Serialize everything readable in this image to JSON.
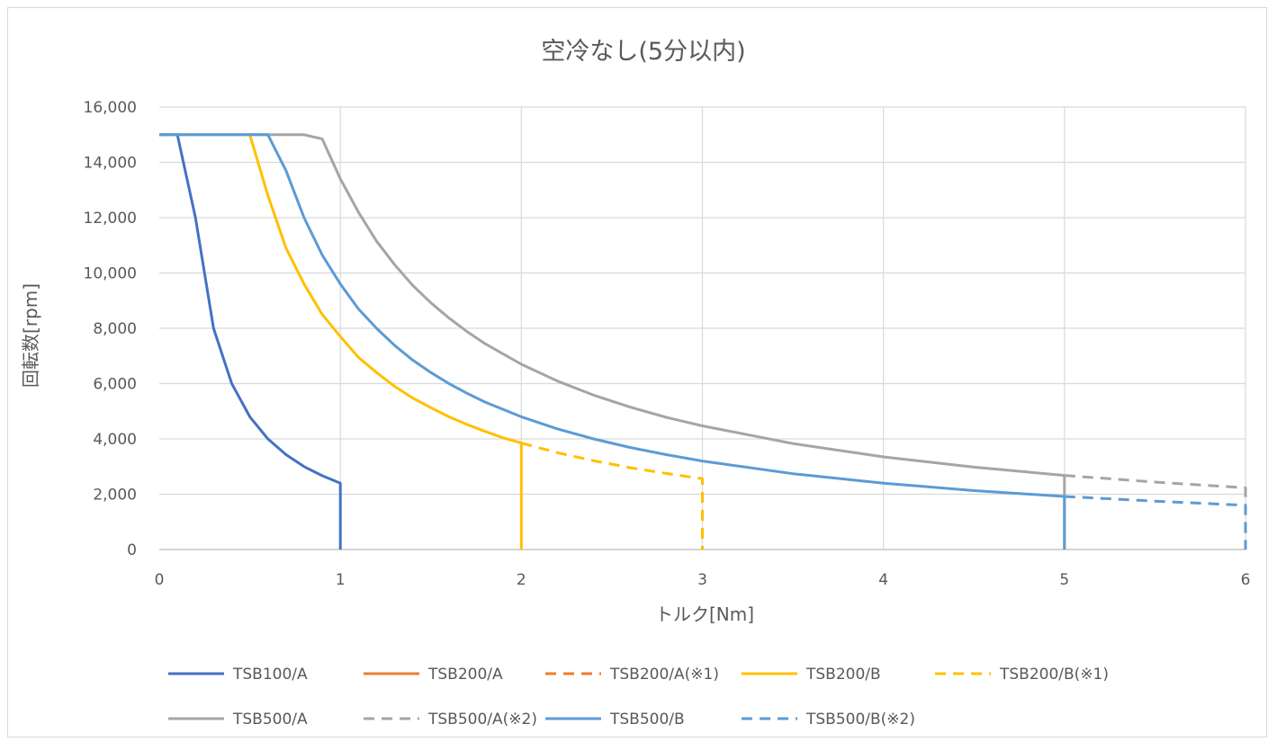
{
  "chart_data": {
    "type": "line",
    "title": "空冷なし(5分以内)",
    "xlabel": "トルク[Nm]",
    "ylabel": "回転数[rpm]",
    "xlim": [
      0,
      6
    ],
    "ylim": [
      0,
      16000
    ],
    "x_ticks": [
      0,
      1,
      2,
      3,
      4,
      5,
      6
    ],
    "x_tick_labels": [
      "0",
      "1",
      "2",
      "3",
      "4",
      "5",
      "6"
    ],
    "y_ticks": [
      0,
      2000,
      4000,
      6000,
      8000,
      10000,
      12000,
      14000,
      16000
    ],
    "y_tick_labels": [
      "0",
      "2,000",
      "4,000",
      "6,000",
      "8,000",
      "10,000",
      "12,000",
      "14,000",
      "16,000"
    ],
    "grid": true,
    "legend_position": "bottom",
    "series": [
      {
        "name": "TSB100/A",
        "color": "#4472c4",
        "dash": false,
        "points": [
          [
            0,
            15000
          ],
          [
            0.1,
            15000
          ],
          [
            0.2,
            12000
          ],
          [
            0.3,
            8000
          ],
          [
            0.4,
            6000
          ],
          [
            0.5,
            4800
          ],
          [
            0.6,
            4000
          ],
          [
            0.7,
            3430
          ],
          [
            0.8,
            3000
          ],
          [
            0.9,
            2670
          ],
          [
            1.0,
            2400
          ],
          [
            1.0,
            0
          ]
        ]
      },
      {
        "name": "TSB200/A",
        "color": "#ed7d31",
        "dash": false,
        "points": []
      },
      {
        "name": "TSB200/A(※1)",
        "color": "#ed7d31",
        "dash": true,
        "points": []
      },
      {
        "name": "TSB200/B",
        "color": "#ffc000",
        "dash": false,
        "points": [
          [
            0.5,
            15000
          ],
          [
            0.6,
            12800
          ],
          [
            0.7,
            10900
          ],
          [
            0.8,
            9600
          ],
          [
            0.9,
            8500
          ],
          [
            1.0,
            7700
          ],
          [
            1.1,
            6950
          ],
          [
            1.2,
            6400
          ],
          [
            1.3,
            5900
          ],
          [
            1.4,
            5480
          ],
          [
            1.5,
            5130
          ],
          [
            1.6,
            4800
          ],
          [
            1.7,
            4520
          ],
          [
            1.8,
            4270
          ],
          [
            1.9,
            4040
          ],
          [
            2.0,
            3850
          ],
          [
            2.0,
            0
          ]
        ]
      },
      {
        "name": "TSB200/B(※1)",
        "color": "#ffc000",
        "dash": true,
        "points": [
          [
            2.0,
            3850
          ],
          [
            2.2,
            3500
          ],
          [
            2.4,
            3210
          ],
          [
            2.6,
            2960
          ],
          [
            2.8,
            2750
          ],
          [
            3.0,
            2560
          ],
          [
            3.0,
            0
          ]
        ]
      },
      {
        "name": "TSB500/A",
        "color": "#a5a5a5",
        "dash": false,
        "points": [
          [
            0,
            15000
          ],
          [
            0.8,
            15000
          ],
          [
            0.9,
            14850
          ],
          [
            1.0,
            13400
          ],
          [
            1.1,
            12200
          ],
          [
            1.2,
            11150
          ],
          [
            1.3,
            10300
          ],
          [
            1.4,
            9550
          ],
          [
            1.5,
            8920
          ],
          [
            1.6,
            8370
          ],
          [
            1.7,
            7880
          ],
          [
            1.8,
            7440
          ],
          [
            2.0,
            6700
          ],
          [
            2.2,
            6090
          ],
          [
            2.4,
            5580
          ],
          [
            2.6,
            5150
          ],
          [
            2.8,
            4780
          ],
          [
            3.0,
            4470
          ],
          [
            3.5,
            3830
          ],
          [
            4.0,
            3350
          ],
          [
            4.5,
            2980
          ],
          [
            5.0,
            2680
          ],
          [
            5.0,
            0
          ]
        ]
      },
      {
        "name": "TSB500/A(※2)",
        "color": "#a5a5a5",
        "dash": true,
        "points": [
          [
            5.0,
            2680
          ],
          [
            5.5,
            2440
          ],
          [
            6.0,
            2230
          ],
          [
            6.0,
            0
          ]
        ]
      },
      {
        "name": "TSB500/B",
        "color": "#5b9bd5",
        "dash": false,
        "points": [
          [
            0,
            15000
          ],
          [
            0.6,
            15000
          ],
          [
            0.7,
            13700
          ],
          [
            0.8,
            12000
          ],
          [
            0.9,
            10650
          ],
          [
            1.0,
            9600
          ],
          [
            1.1,
            8700
          ],
          [
            1.2,
            8000
          ],
          [
            1.3,
            7380
          ],
          [
            1.4,
            6850
          ],
          [
            1.5,
            6400
          ],
          [
            1.6,
            6000
          ],
          [
            1.7,
            5650
          ],
          [
            1.8,
            5330
          ],
          [
            2.0,
            4800
          ],
          [
            2.2,
            4360
          ],
          [
            2.4,
            4000
          ],
          [
            2.6,
            3690
          ],
          [
            2.8,
            3430
          ],
          [
            3.0,
            3200
          ],
          [
            3.5,
            2740
          ],
          [
            4.0,
            2400
          ],
          [
            4.5,
            2130
          ],
          [
            5.0,
            1920
          ],
          [
            5.0,
            0
          ]
        ]
      },
      {
        "name": "TSB500/B(※2)",
        "color": "#5b9bd5",
        "dash": true,
        "points": [
          [
            5.0,
            1920
          ],
          [
            5.5,
            1750
          ],
          [
            6.0,
            1600
          ],
          [
            6.0,
            0
          ]
        ]
      }
    ]
  }
}
